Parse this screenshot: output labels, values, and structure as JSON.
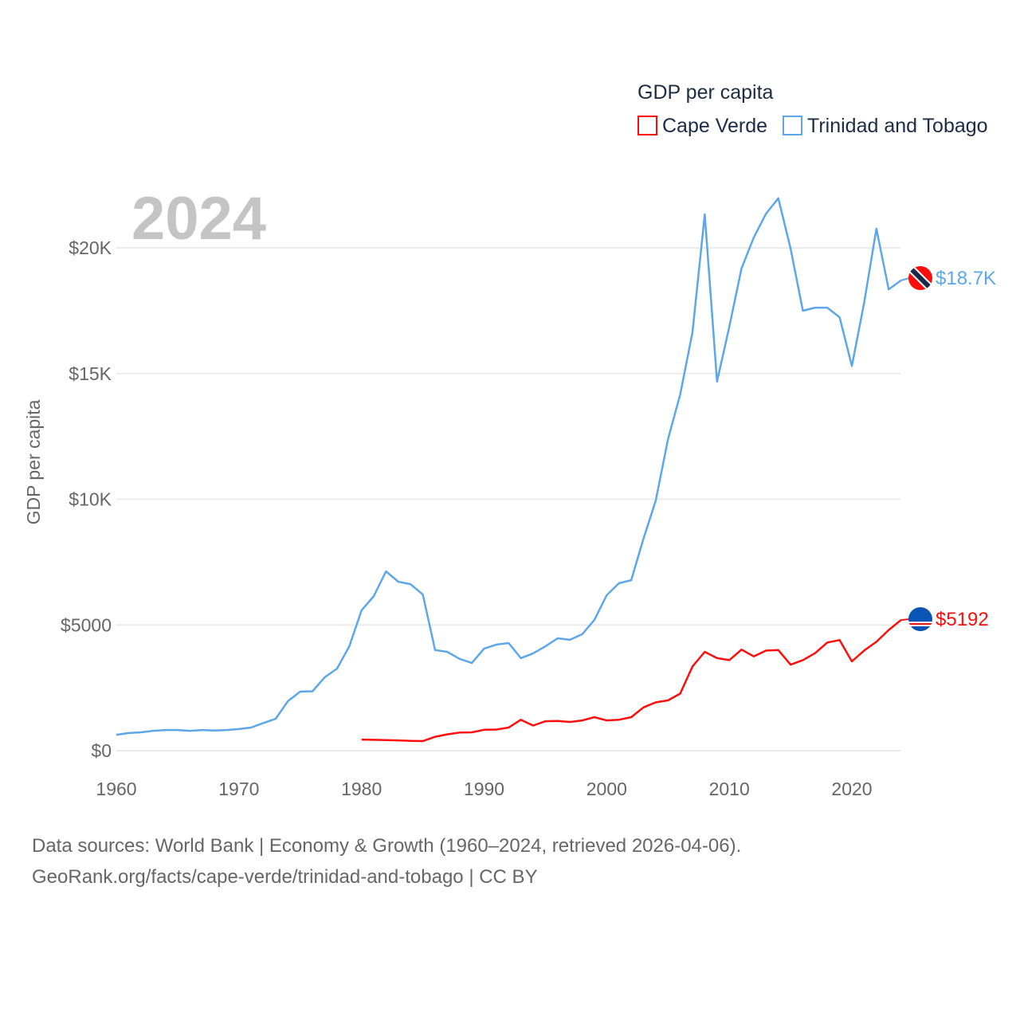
{
  "chart_data": {
    "type": "line",
    "title": "GDP per capita",
    "year_label": "2024",
    "ylabel": "GDP per capita",
    "xlabel": "",
    "xlim": [
      1960,
      2024
    ],
    "ylim": [
      0,
      22000
    ],
    "x_ticks": [
      1960,
      1970,
      1980,
      1990,
      2000,
      2010,
      2020
    ],
    "x_tick_labels": [
      "1960",
      "1970",
      "1980",
      "1990",
      "2000",
      "2010",
      "2020"
    ],
    "y_ticks": [
      0,
      5000,
      10000,
      15000,
      20000
    ],
    "y_tick_labels": [
      "$0",
      "$5000",
      "$10K",
      "$15K",
      "$20K"
    ],
    "grid": true,
    "legend_position": "top-right",
    "series": [
      {
        "name": "Cape Verde",
        "color": "#ff0d0d",
        "flag": "cape-verde-flag-icon",
        "end_label": "$5192",
        "start_year": 1980,
        "values": [
          440,
          430,
          420,
          410,
          390,
          380,
          550,
          650,
          720,
          730,
          830,
          840,
          920,
          1230,
          1000,
          1170,
          1180,
          1140,
          1200,
          1330,
          1200,
          1230,
          1330,
          1720,
          1920,
          2000,
          2270,
          3350,
          3930,
          3680,
          3600,
          4020,
          3750,
          3980,
          4000,
          3420,
          3600,
          3880,
          4300,
          4400,
          3550,
          3980,
          4330,
          4800,
          5192
        ]
      },
      {
        "name": "Trinidad and Tobago",
        "color": "#5ea6ea",
        "flag": "trinidad-flag-icon",
        "end_label": "$18.7K",
        "start_year": 1960,
        "values": [
          630,
          700,
          730,
          790,
          820,
          820,
          790,
          820,
          800,
          820,
          860,
          920,
          1100,
          1270,
          1970,
          2350,
          2360,
          2920,
          3260,
          4150,
          5580,
          6150,
          7130,
          6720,
          6620,
          6210,
          4000,
          3930,
          3650,
          3490,
          4060,
          4220,
          4280,
          3680,
          3870,
          4150,
          4470,
          4410,
          4630,
          5200,
          6180,
          6660,
          6780,
          8430,
          9950,
          12390,
          14170,
          16640,
          21330,
          14680,
          16860,
          19180,
          20410,
          21360,
          21970,
          19970,
          17500,
          17620,
          17620,
          17240,
          15300,
          17810,
          20760,
          18350,
          18700
        ]
      }
    ],
    "source_line1": "Data sources: World Bank | Economy & Growth (1960–2024, retrieved 2026-04-06).",
    "source_line2": "GeoRank.org/facts/cape-verde/trinidad-and-tobago | CC BY"
  }
}
